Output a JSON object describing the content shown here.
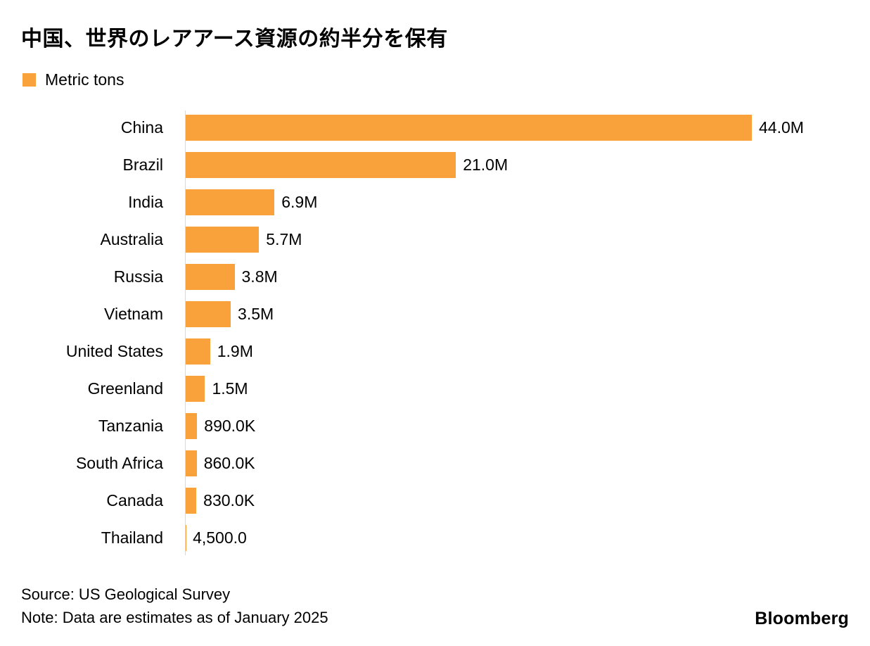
{
  "chart_data": {
    "type": "bar",
    "orientation": "horizontal",
    "title": "中国、世界のレアアース資源の約半分を保有",
    "legend_label": "Metric tons",
    "categories": [
      "China",
      "Brazil",
      "India",
      "Australia",
      "Russia",
      "Vietnam",
      "United States",
      "Greenland",
      "Tanzania",
      "South Africa",
      "Canada",
      "Thailand"
    ],
    "values": [
      44000000,
      21000000,
      6900000,
      5700000,
      3800000,
      3500000,
      1900000,
      1500000,
      890000,
      860000,
      830000,
      4500
    ],
    "value_labels": [
      "44.0M",
      "21.0M",
      "6.9M",
      "5.7M",
      "3.8M",
      "3.5M",
      "1.9M",
      "1.5M",
      "890.0K",
      "860.0K",
      "830.0K",
      "4,500.0"
    ],
    "xlim": [
      0,
      44000000
    ],
    "bar_color": "#F9A13B",
    "unit": "Metric tons"
  },
  "footer": {
    "source": "Source: US Geological Survey",
    "note": "Note: Data are estimates as of January 2025",
    "brand": "Bloomberg"
  }
}
